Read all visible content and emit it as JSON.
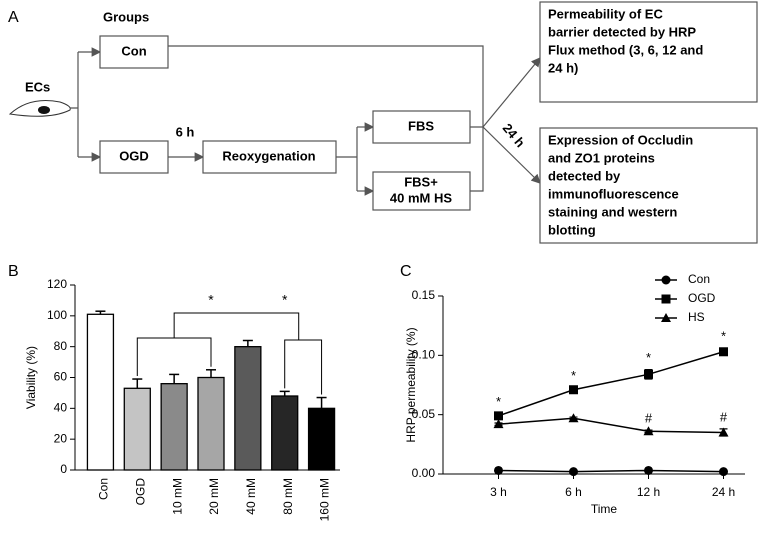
{
  "diagram": {
    "panel_label": "A",
    "groups_label": "Groups",
    "cells_label": "ECs",
    "con": "Con",
    "ogd": "OGD",
    "duration": "6 h",
    "reoxygenation": "Reoxygenation",
    "fbs": "FBS",
    "fbs_hs": [
      "FBS+",
      "40 mM HS"
    ],
    "time": "24 h",
    "outputs": [
      {
        "lines": [
          "Permeability of  EC",
          "barrier detected by HRP",
          "Flux method (3, 6, 12 and",
          "24 h)"
        ]
      },
      {
        "lines": [
          "Expression of Occludin",
          "and ZO1 proteins",
          "detected by",
          "immunofluorescence",
          "staining and western",
          "blotting"
        ]
      }
    ]
  },
  "chart_data": [
    {
      "type": "bar",
      "panel_label": "B",
      "ylabel": "Viability (%)",
      "categories": [
        "Con",
        "OGD",
        "10 mM",
        "20 mM",
        "40 mM",
        "80 mM",
        "160 mM"
      ],
      "values": [
        101,
        53,
        56,
        60,
        80,
        48,
        40
      ],
      "errors": [
        2,
        6,
        6,
        5,
        4,
        3,
        7
      ],
      "colors": [
        "#ffffff",
        "#c4c4c4",
        "#8a8a8a",
        "#a6a6a6",
        "#5a5a5a",
        "#262626",
        "#000000"
      ],
      "ylim": [
        0,
        120
      ],
      "yticks": [
        0,
        20,
        40,
        60,
        80,
        100,
        120
      ],
      "annotations": [
        "*",
        "*"
      ]
    },
    {
      "type": "line",
      "panel_label": "C",
      "ylabel": "HRP permeability (%)",
      "xlabel": "Time",
      "categories": [
        "3 h",
        "6 h",
        "12 h",
        "24 h"
      ],
      "series": [
        {
          "name": "Con",
          "color": "#000000",
          "marker": "circle",
          "values": [
            0.003,
            0.002,
            0.003,
            0.002
          ],
          "errors": [
            0.001,
            0.001,
            0.001,
            0.001
          ]
        },
        {
          "name": "OGD",
          "color": "#000000",
          "marker": "square",
          "values": [
            0.049,
            0.071,
            0.084,
            0.103
          ],
          "errors": [
            0.002,
            0.002,
            0.004,
            0.003
          ],
          "point_labels": [
            "*",
            "*",
            "*",
            "*"
          ]
        },
        {
          "name": "HS",
          "color": "#000000",
          "marker": "triangle",
          "values": [
            0.042,
            0.047,
            0.036,
            0.035
          ],
          "errors": [
            0.001,
            0.001,
            0.001,
            0.003
          ],
          "point_labels": [
            null,
            null,
            "#",
            "#"
          ]
        }
      ],
      "ylim": [
        0,
        0.15
      ],
      "yticks": [
        {
          "value": 0,
          "label": "0.00"
        },
        0.05,
        {
          "value": 0.1,
          "label": "0.10"
        },
        0.15
      ],
      "legend": "top-right"
    }
  ]
}
